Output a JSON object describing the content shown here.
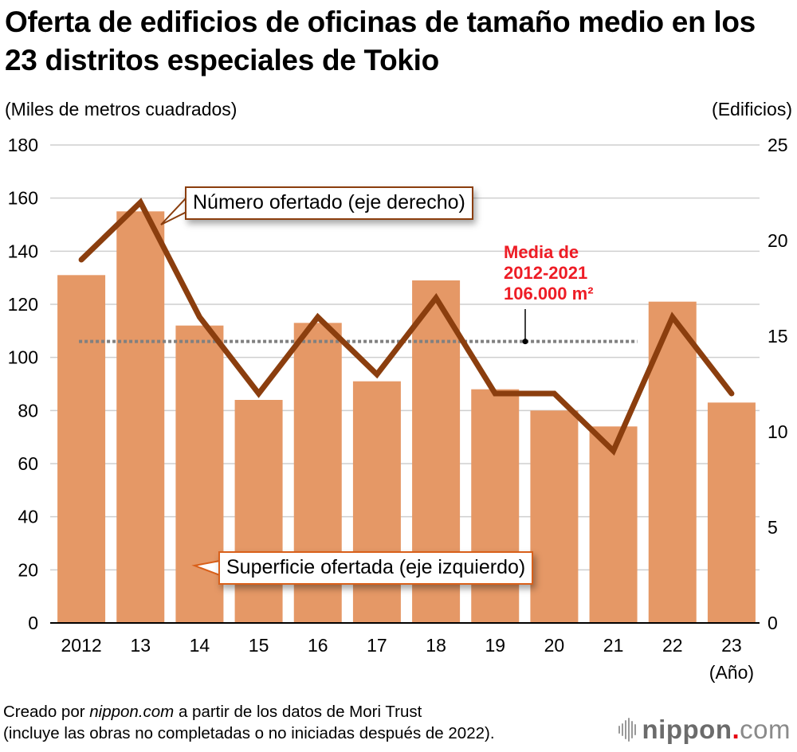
{
  "chart_data": {
    "type": "bar",
    "title": "Oferta de edificios de oficinas de tamaño medio en los 23 distritos especiales de Tokio",
    "categories": [
      "2012",
      "13",
      "14",
      "15",
      "16",
      "17",
      "18",
      "19",
      "20",
      "21",
      "22",
      "23"
    ],
    "xlabel": "(Año)",
    "ylabel_left": "(Miles de metros cuadrados)",
    "ylabel_right": "(Edificios)",
    "ylim_left": [
      0,
      180
    ],
    "ylim_right": [
      0,
      25
    ],
    "yticks_left": [
      "0",
      "20",
      "40",
      "60",
      "80",
      "100",
      "120",
      "140",
      "160",
      "180"
    ],
    "yticks_right": [
      "0",
      "5",
      "10",
      "15",
      "20",
      "25"
    ],
    "grid": true,
    "series": [
      {
        "name": "Superficie ofertada (eje izquierdo)",
        "type": "bar",
        "axis": "left",
        "color": "#E59866",
        "values": [
          131,
          155,
          112,
          84,
          113,
          91,
          129,
          88,
          80,
          74,
          121,
          83
        ]
      },
      {
        "name": "Número ofertado (eje derecho)",
        "type": "line",
        "axis": "right",
        "color": "#8B3E0E",
        "values": [
          19,
          22,
          16,
          12,
          16,
          13,
          17,
          12,
          12,
          9,
          16,
          12
        ]
      }
    ],
    "reference_line": {
      "label": [
        "Media de",
        "2012-2021",
        "106.000 m²"
      ],
      "value": 106,
      "axis": "left",
      "color": "#ee1c25",
      "span_categories": [
        "2012",
        "21"
      ]
    }
  },
  "header": {
    "title": "Oferta de edificios de oficinas de tamaño medio en los 23 distritos especiales de Tokio"
  },
  "callouts": {
    "line_label": "Número ofertado (eje derecho)",
    "bar_label": "Superficie ofertada (eje izquierdo)"
  },
  "footer": {
    "line1_prefix": "Creado por ",
    "line1_brand": "nippon.com",
    "line1_suffix": " a partir de los datos de Mori Trust",
    "line2": "(incluye las obras no completadas o no iniciadas después de 2022)."
  },
  "logo": {
    "main": "nippon",
    "dot": ".",
    "tld": "com"
  }
}
